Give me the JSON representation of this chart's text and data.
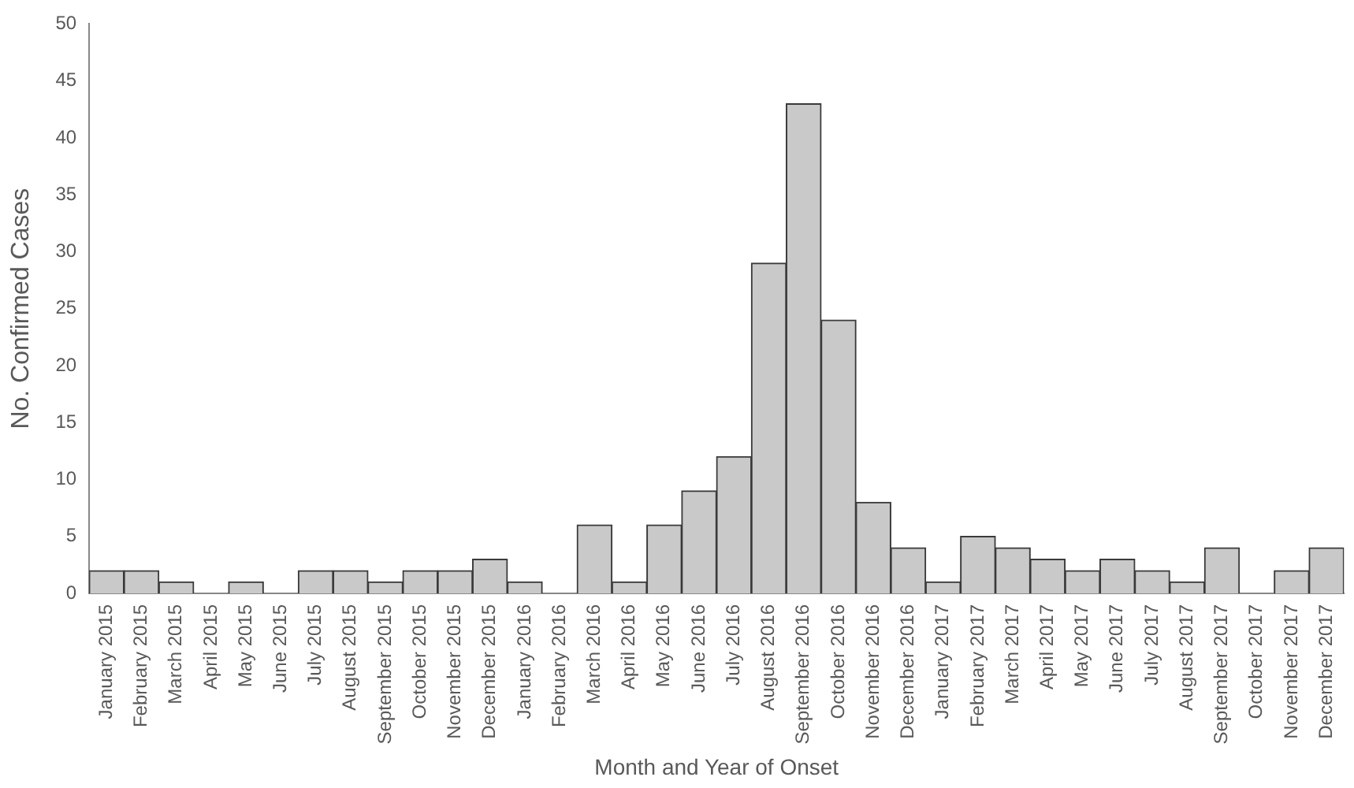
{
  "chart_data": {
    "type": "bar",
    "xlabel": "Month and Year of Onset",
    "ylabel": "No. Confirmed Cases",
    "categories": [
      "January 2015",
      "February 2015",
      "March 2015",
      "April 2015",
      "May 2015",
      "June 2015",
      "July 2015",
      "August 2015",
      "September 2015",
      "October 2015",
      "November 2015",
      "December 2015",
      "January 2016",
      "February 2016",
      "March 2016",
      "April 2016",
      "May 2016",
      "June 2016",
      "July 2016",
      "August 2016",
      "September 2016",
      "October 2016",
      "November 2016",
      "December 2016",
      "January 2017",
      "February 2017",
      "March 2017",
      "April 2017",
      "May 2017",
      "June 2017",
      "July 2017",
      "August 2017",
      "September 2017",
      "October 2017",
      "November 2017",
      "December 2017"
    ],
    "values": [
      2,
      2,
      1,
      0,
      1,
      0,
      2,
      2,
      1,
      2,
      2,
      3,
      1,
      0,
      6,
      1,
      6,
      9,
      12,
      29,
      43,
      24,
      8,
      4,
      1,
      5,
      4,
      3,
      2,
      3,
      2,
      1,
      4,
      0,
      2,
      4
    ],
    "color": "#c9c9c9",
    "ylim": [
      0,
      50
    ],
    "yticks": [
      0,
      5,
      10,
      15,
      20,
      25,
      30,
      35,
      40,
      45,
      50
    ],
    "grid": false,
    "legend": false
  }
}
